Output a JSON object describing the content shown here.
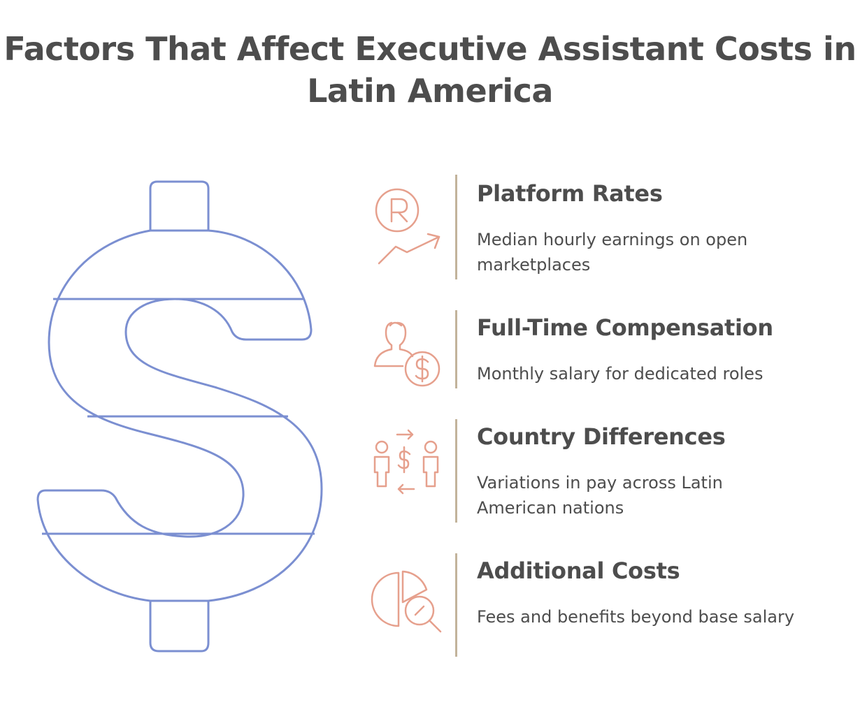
{
  "title": "Factors That Affect Executive Assistant Costs in Latin America",
  "colors": {
    "dollar_outline": "#7b8fd1",
    "icon_stroke": "#e6a08d",
    "divider": "#c2b39b",
    "text": "#4d4d4d"
  },
  "factors": [
    {
      "icon": "rupee-coin-growth-icon",
      "heading": "Platform Rates",
      "description": "Median hourly earnings on open marketplaces"
    },
    {
      "icon": "person-salary-icon",
      "heading": "Full-Time Compensation",
      "description": "Monthly salary for dedicated roles"
    },
    {
      "icon": "people-exchange-money-icon",
      "heading": "Country Differences",
      "description": "Variations in pay across Latin American nations"
    },
    {
      "icon": "pie-chart-search-icon",
      "heading": "Additional Costs",
      "description": "Fees and benefits beyond base salary"
    }
  ]
}
